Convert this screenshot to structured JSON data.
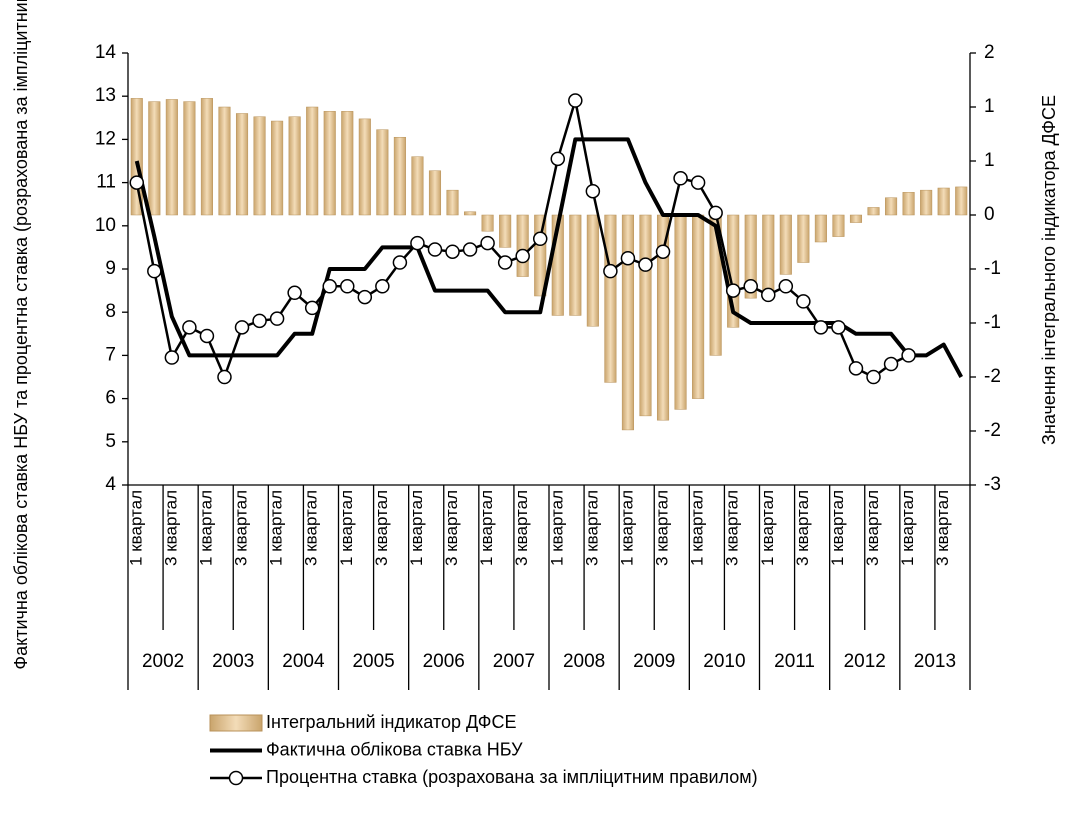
{
  "chart_data": {
    "type": "bar",
    "ylabel": "Фактична облікова ставка НБУ та процентна ставка (розрахована за імпліцитним правилом), %",
    "y2label": "Значення інтегрального індикатора ДФСЕ",
    "categories": [
      "1 квартал",
      null,
      "3 квартал",
      null,
      "1 квартал",
      null,
      "3 квартал",
      null,
      "1 квартал",
      null,
      "3 квартал",
      null,
      "1 квартал",
      null,
      "3 квартал",
      null,
      "1 квартал",
      null,
      "3 квартал",
      null,
      "1 квартал",
      null,
      "3 квартал",
      null,
      "1 квартал",
      null,
      "3 квартал",
      null,
      "1 квартал",
      null,
      "3 квартал",
      null,
      "1 квартал",
      null,
      "3 квартал",
      null,
      "1 квартал",
      null,
      "3 квартал",
      null,
      "1 квартал",
      null,
      "3 квартал",
      null,
      "1 квартал",
      null,
      "3 квартал",
      null
    ],
    "years": [
      "2002",
      "2003",
      "2004",
      "2005",
      "2006",
      "2007",
      "2008",
      "2009",
      "2010",
      "2011",
      "2012",
      "2013"
    ],
    "ylim": [
      4,
      14
    ],
    "yticks": [
      4,
      5,
      6,
      7,
      8,
      9,
      10,
      11,
      12,
      13,
      14
    ],
    "y2lim": [
      -2.5,
      1.5
    ],
    "y2ticks": [
      {
        "value": -2.5,
        "label": "-3"
      },
      {
        "value": -2,
        "label": "-2"
      },
      {
        "value": -1.5,
        "label": "-2"
      },
      {
        "value": -1,
        "label": "-1"
      },
      {
        "value": -0.5,
        "label": "-1"
      },
      0,
      {
        "value": 0.5,
        "label": "1"
      },
      {
        "value": 1,
        "label": "1"
      },
      {
        "value": 1.5,
        "label": "2"
      }
    ],
    "series": [
      {
        "name": "Інтегральний індикатор ДФСЕ",
        "type": "bar",
        "axis": "y2",
        "color": "#e6c697",
        "values": [
          1.08,
          1.05,
          1.07,
          1.05,
          1.08,
          1.0,
          0.94,
          0.91,
          0.87,
          0.91,
          1.0,
          0.96,
          0.96,
          0.89,
          0.79,
          0.72,
          0.54,
          0.41,
          0.23,
          0.03,
          -0.15,
          -0.3,
          -0.57,
          -0.75,
          -0.93,
          -0.93,
          -1.03,
          -1.55,
          -1.99,
          -1.86,
          -1.9,
          -1.8,
          -1.7,
          -1.3,
          -1.04,
          -0.77,
          -0.75,
          -0.55,
          -0.44,
          -0.25,
          -0.2,
          -0.07,
          0.07,
          0.16,
          0.21,
          0.23,
          0.25,
          0.26
        ]
      },
      {
        "name": "Фактична облікова ставка НБУ",
        "type": "line",
        "color": "#000000",
        "values": [
          11.5,
          9.75,
          7.9,
          7.0,
          7.0,
          7.0,
          7.0,
          7.0,
          7.0,
          7.5,
          7.5,
          9.0,
          9.0,
          9.0,
          9.5,
          9.5,
          9.5,
          8.5,
          8.5,
          8.5,
          8.5,
          8.0,
          8.0,
          8.0,
          10.0,
          12.0,
          12.0,
          12.0,
          12.0,
          11.0,
          10.25,
          10.25,
          10.25,
          10.0,
          8.0,
          7.75,
          7.75,
          7.75,
          7.75,
          7.75,
          7.75,
          7.5,
          7.5,
          7.5,
          7.0,
          7.0,
          7.25,
          6.5
        ]
      },
      {
        "name": "Процентна ставка (розрахована за імпліцитним правилом)",
        "type": "line-marker",
        "color": "#000000",
        "values": [
          11.0,
          8.95,
          6.95,
          7.65,
          7.45,
          6.5,
          7.65,
          7.8,
          7.85,
          8.45,
          8.1,
          8.6,
          8.6,
          8.35,
          8.6,
          9.15,
          9.6,
          9.45,
          9.4,
          9.45,
          9.6,
          9.15,
          9.3,
          9.7,
          11.55,
          12.9,
          10.8,
          8.95,
          9.25,
          9.1,
          9.4,
          11.1,
          11.0,
          10.3,
          8.5,
          8.6,
          8.4,
          8.6,
          8.25,
          7.65,
          7.65,
          6.7,
          6.5,
          6.8,
          7.0,
          null,
          null,
          null
        ]
      }
    ]
  }
}
